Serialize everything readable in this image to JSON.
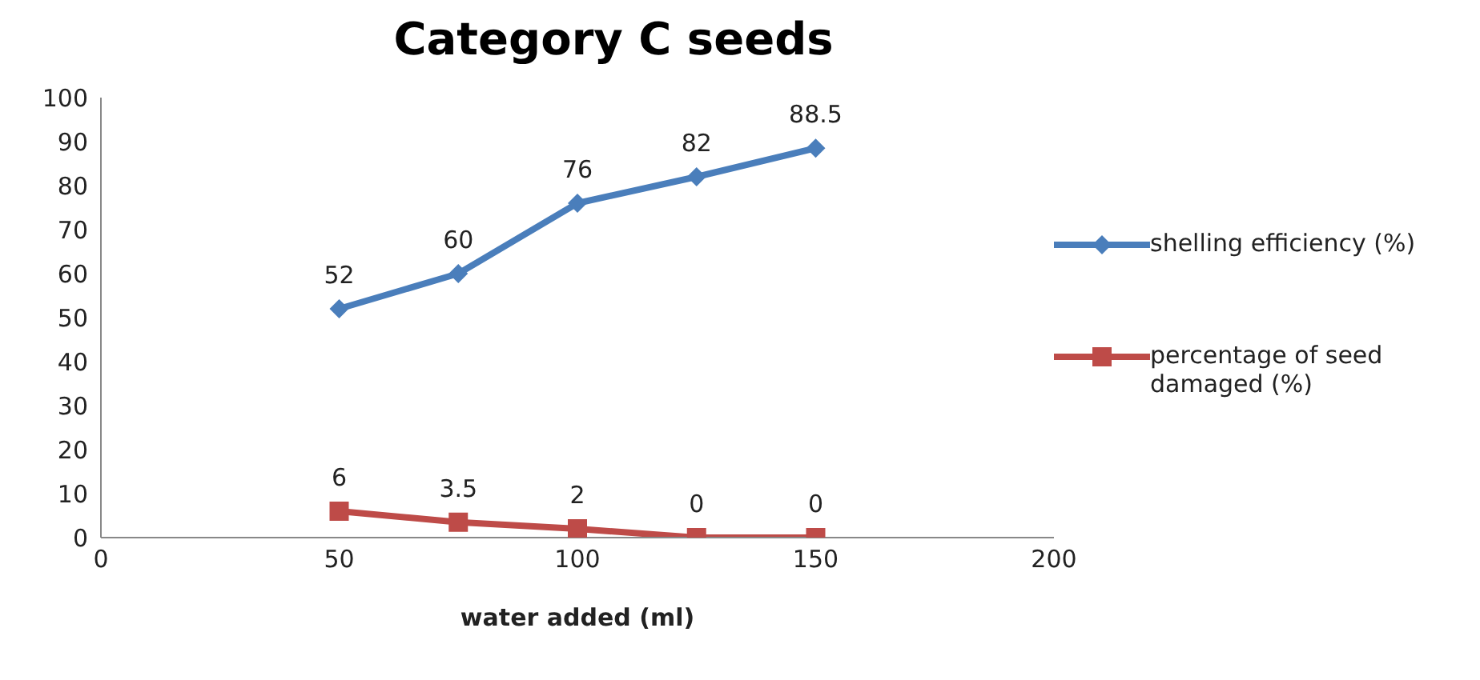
{
  "chart_data": {
    "type": "line",
    "title": "Category C seeds",
    "xlabel": "water added (ml)",
    "x": [
      50,
      75,
      100,
      125,
      150
    ],
    "series": [
      {
        "name": "shelling efficiency (%)",
        "color": "#4a7ebb",
        "values": [
          52,
          60,
          76,
          82,
          88.5
        ],
        "marker": "diamond"
      },
      {
        "name": "percentage of seed damaged (%)",
        "color": "#be4b48",
        "values": [
          6,
          3.5,
          2,
          0,
          0
        ],
        "marker": "square"
      }
    ],
    "xlim": [
      0,
      200
    ],
    "xticks": [
      0,
      50,
      100,
      150,
      200
    ],
    "ylim": [
      0,
      100
    ],
    "yticks": [
      0,
      10,
      20,
      30,
      40,
      50,
      60,
      70,
      80,
      90,
      100
    ],
    "grid": false,
    "legend": "right",
    "data_labels": true
  }
}
